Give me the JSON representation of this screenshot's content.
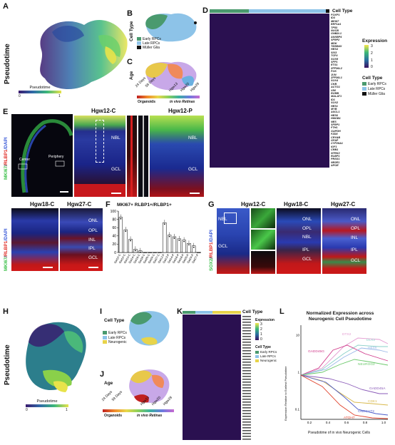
{
  "panels": {
    "A": {
      "letter": "A",
      "axis_label": "Pseudotime",
      "legend_title": "Pseudotime",
      "legend_min": "0",
      "legend_max": "1"
    },
    "B": {
      "letter": "B",
      "axis_label": "Cell Type",
      "legend": [
        "Early RPCs",
        "Late RPCs",
        "Müller Glia"
      ]
    },
    "C": {
      "letter": "C",
      "axis_label": "Age",
      "ticks": [
        "24 Days",
        "59 Days",
        "Hgw13",
        "Hgw20",
        "Hgw28"
      ],
      "legend_left": "Organoids",
      "legend_right": "in vivo Retinas"
    },
    "D": {
      "letter": "D",
      "cell_type_title": "Cell Type",
      "expression_title": "Expression",
      "expression_ticks": [
        "3",
        "2",
        "1",
        "0"
      ],
      "cell_type_legend_title": "Cell Type",
      "cell_type_legend": [
        "Early RPCs",
        "Late RPCs",
        "Müller Glia"
      ],
      "genes": [
        "FOXP1",
        "ID3",
        "MKI67",
        "EEF1A1",
        "TP53",
        "NUCB",
        "GNB2L1",
        "ANXBP4",
        "SFRP2",
        "MDK",
        "TMSB4X",
        "HES4",
        "SIX3",
        "TCF4",
        "SOX9",
        "SFP1",
        "ETS1",
        "ZFP36L2",
        "FOS",
        "JUN",
        "ZFP36L1",
        "SOX4",
        "CKB",
        "ACTG1",
        "VIM",
        "RORB",
        "MALAT1",
        "ID1",
        "SOX2",
        "HES1",
        "MYB",
        "ASCL1",
        "HES6",
        "HMGB1",
        "NES",
        "SFRP1",
        "FTH1",
        "GAPDH",
        "FZD5",
        "CRYAB",
        "GFAP",
        "CYP26A1",
        "IGF1",
        "CRB1",
        "NTRK2",
        "RLBP1",
        "PRSS1",
        "NR2E1",
        "APOE"
      ]
    },
    "E": {
      "letter": "E",
      "stain": "MKI67/RLBP1/DAPI",
      "stain_parts": [
        "MKI67",
        "/",
        "RLBP1",
        "/DAPI"
      ],
      "titles": [
        "Hgw12-C",
        "Hgw12-P"
      ],
      "labels": {
        "center": "Center",
        "periphery": "Periphery",
        "nbl": "NBL",
        "gcl": "GCL",
        "nbl2": "NBL",
        "gcl2": "GCL"
      }
    },
    "E2": {
      "titles": [
        "Hgw18-C",
        "Hgw27-C"
      ],
      "stain_parts": [
        "MKI67",
        "/",
        "RLBP1",
        "/DAPI"
      ],
      "layers": [
        "ONL",
        "OPL",
        "INL",
        "IPL",
        "GCL"
      ]
    },
    "F": {
      "letter": "F",
      "title": "MKI67+ RLBP1+/RLBP1+",
      "chart_data": {
        "type": "bar",
        "title": "MKI67+ RLBP1+/RLBP1+",
        "categories": [
          "Gw12-C",
          "Gw12-C",
          "Gw13-C",
          "Gw14-C",
          "Gw16-C",
          "Gw18-C",
          "Gw20-C",
          "Gw24-C",
          "Gw27-C",
          "Gw12-P",
          "Gw13-P",
          "Gw14-P",
          "Gw16-P",
          "Gw18-P",
          "Gw20-P",
          "Gw24-P",
          "Gw27-P"
        ],
        "values": [
          85,
          55,
          32,
          8,
          4,
          0,
          0,
          0,
          0,
          72,
          42,
          38,
          33,
          30,
          22,
          16,
          0
        ],
        "ylim": [
          0,
          100
        ],
        "yticks": [
          "100",
          "80",
          "60",
          "40",
          "20",
          "0"
        ]
      }
    },
    "G": {
      "letter": "G",
      "stain_parts": [
        "SOX2",
        "/",
        "RLBP1",
        "/DAPI"
      ],
      "titles": [
        "Hgw12-C",
        "Hgw18-C",
        "Hgw27-C"
      ],
      "labels": {
        "nbl": "NBL",
        "gcl": "GCL",
        "onl": "ONL",
        "opl": "OPL",
        "nbl2": "NBL",
        "ipl": "IPL",
        "gcl2": "GCL",
        "onl3": "ONL",
        "opl3": "OPL",
        "inl3": "INL",
        "ipl3": "IPL",
        "gcl3": "GCL"
      }
    },
    "H": {
      "letter": "H",
      "axis_label": "Pseudotime",
      "legend_title": "Pseudotime",
      "legend_min": "0",
      "legend_max": "1"
    },
    "I": {
      "letter": "I",
      "axis_label": "Cell Type",
      "legend": [
        "Early RPCs",
        "Late RPCs",
        "Neurogenic"
      ]
    },
    "J": {
      "letter": "J",
      "axis_label": "Age",
      "ticks": [
        "24 Days",
        "59 Days",
        "Hgw13",
        "Hgw20",
        "Hgw28"
      ],
      "legend_left": "Organoids",
      "legend_right": "in vivo Retinas"
    },
    "K": {
      "letter": "K",
      "cell_type_title": "Cell Type",
      "expression_title": "Expression",
      "expression_ticks": [
        "3",
        "2",
        "1",
        "0"
      ],
      "cell_type_legend_title": "Cell Type",
      "cell_type_legend": [
        "Early RPCs",
        "Late RPCs",
        "Neurogenic"
      ]
    },
    "L": {
      "letter": "L",
      "title": "Normalized Expression across",
      "title2": "Neurogenic Cell Pseudotime",
      "ylabel": "Expression Relative to Earliest Pseudotime",
      "xlabel": "Pseudotime of in vivo Neurogenic Cells",
      "xticks": [
        "0.2",
        "0.4",
        "0.6",
        "0.8",
        "1.0"
      ],
      "yticks": [
        "10",
        "1",
        "0.1"
      ],
      "series_labels": [
        "DTX2",
        "DLX2",
        "GADD45G",
        "HES6",
        "NEUROG2",
        "GADD45A",
        "CDK1",
        "ONECUT2",
        "ATOH7"
      ]
    }
  },
  "colors": {
    "early": "#4a9a6e",
    "late": "#8dc3e8",
    "muller": "#111111",
    "neuro": "#e8d44a",
    "red": "#e0302a",
    "green": "#3cc04a"
  }
}
